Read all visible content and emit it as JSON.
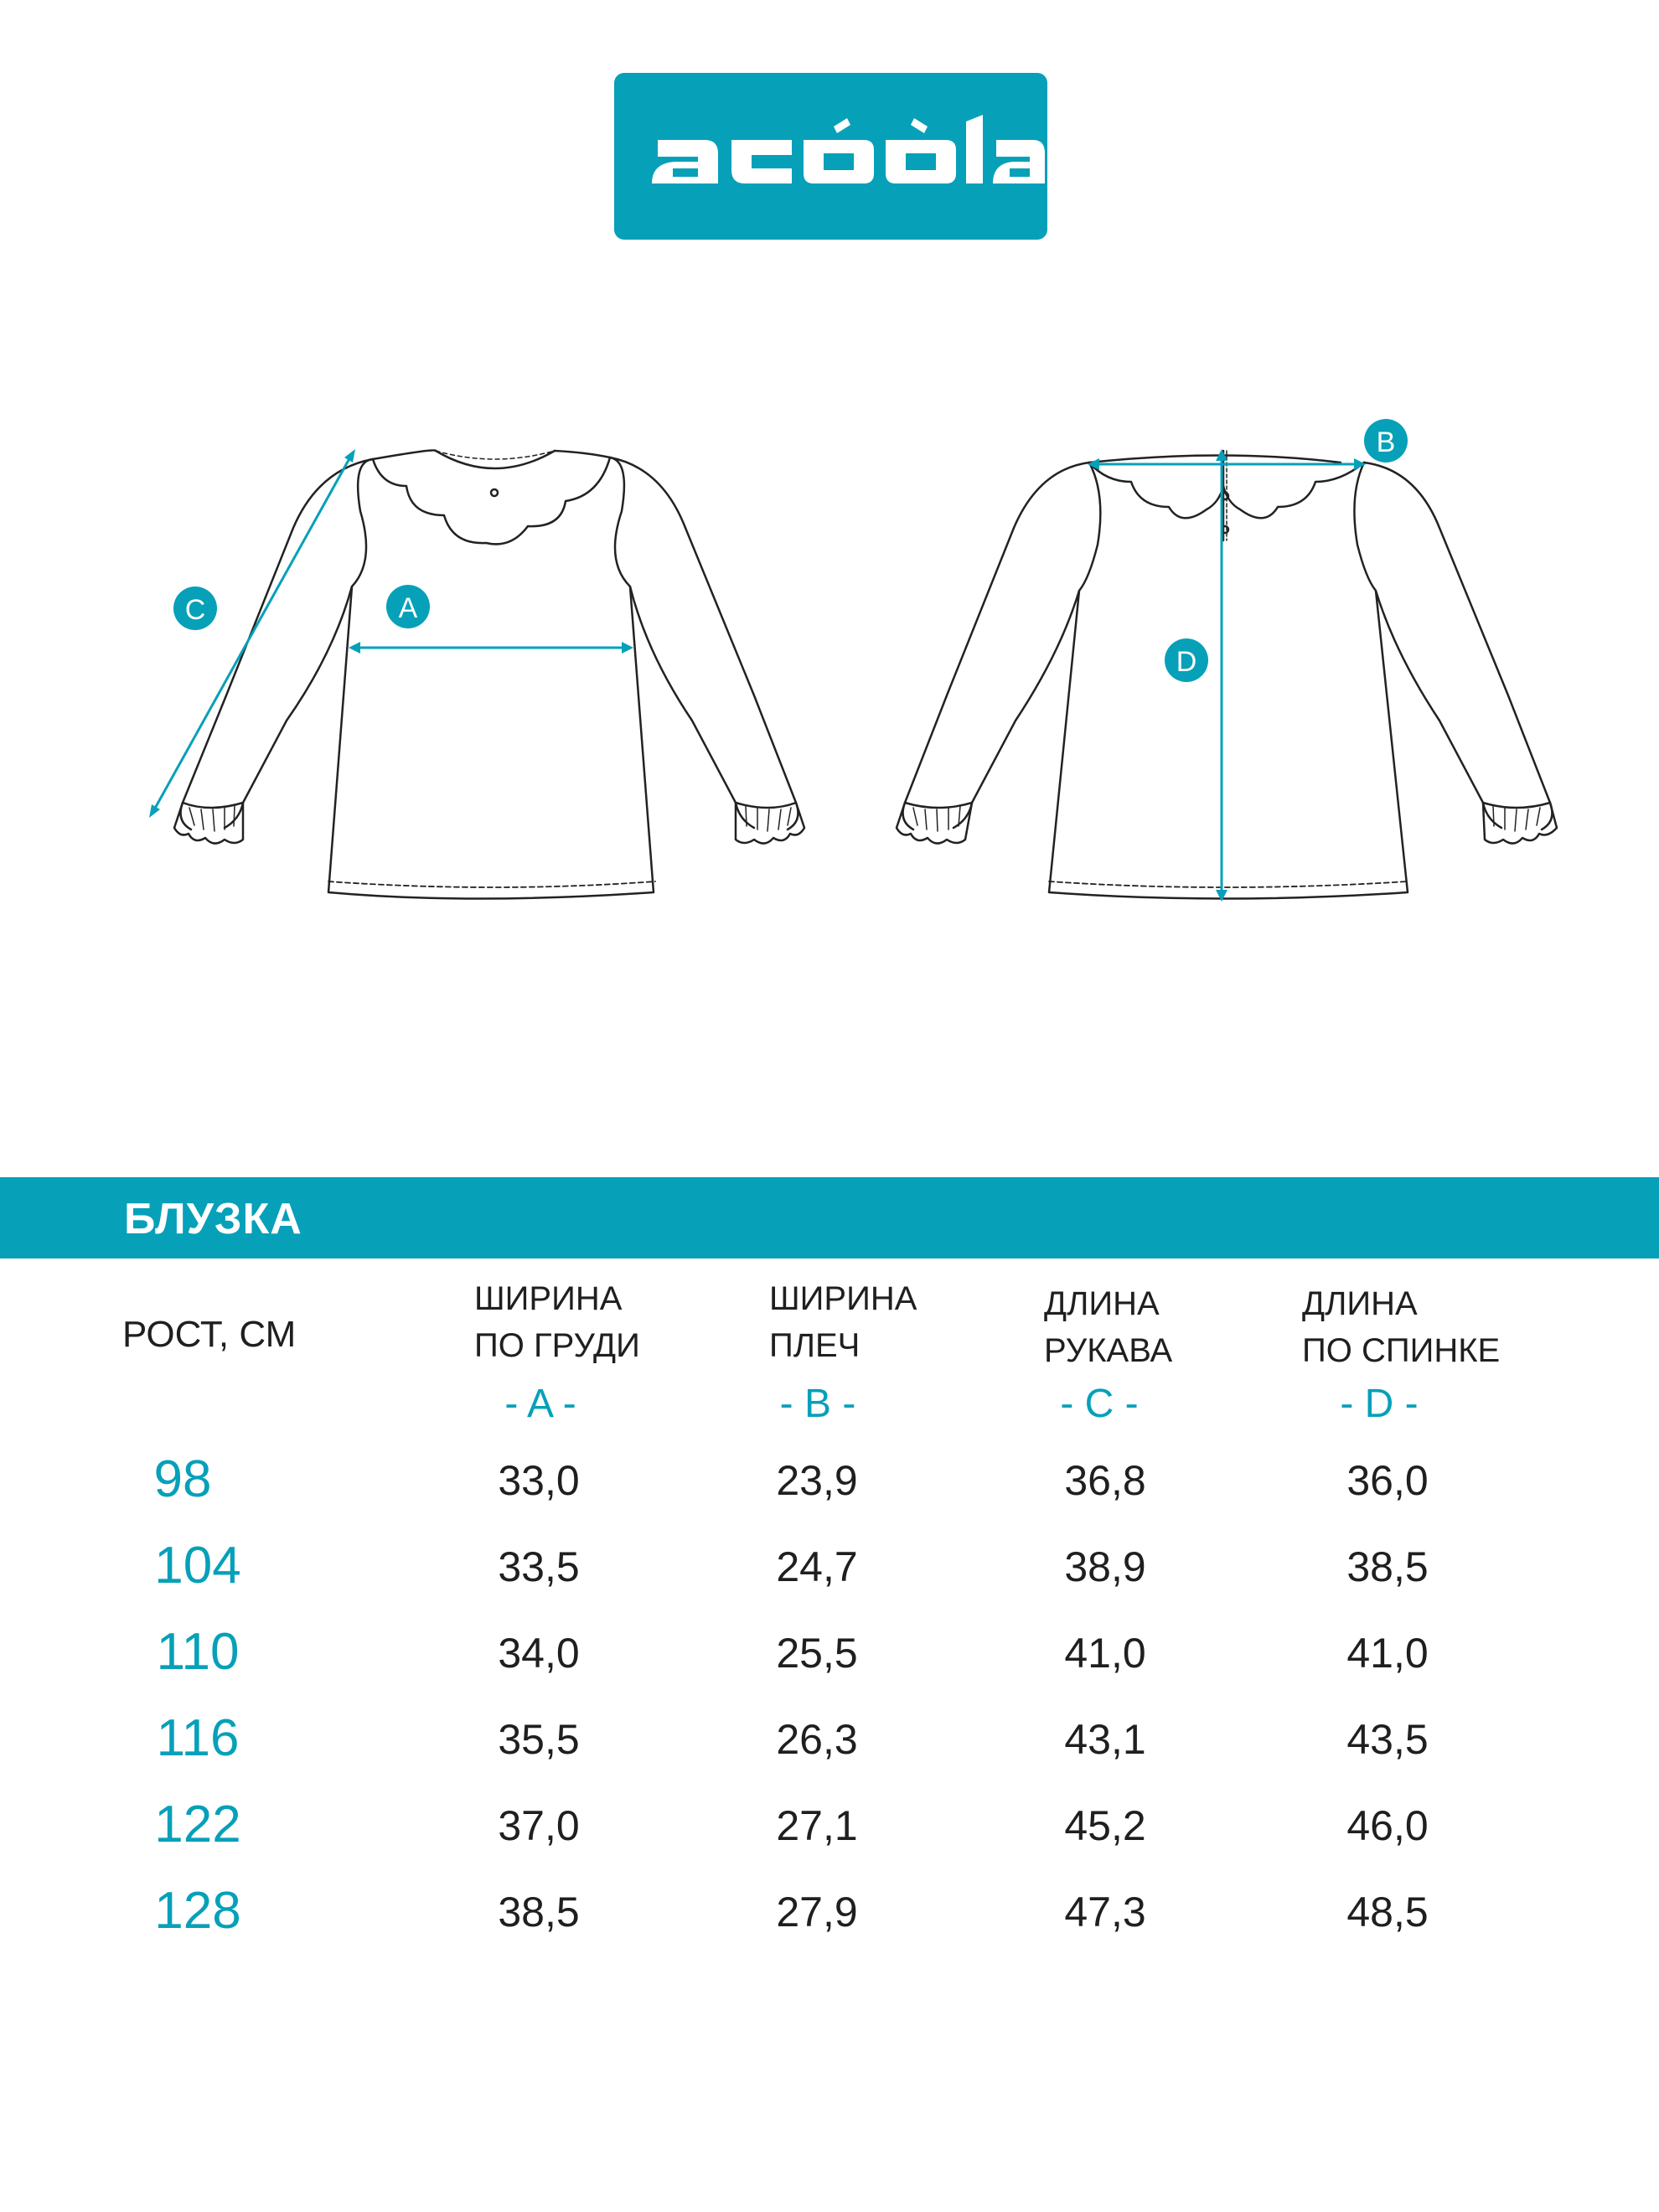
{
  "brand": {
    "logo_text": "acoola",
    "color": "#06a0b9"
  },
  "diagram": {
    "markers": [
      "A",
      "B",
      "C",
      "D"
    ]
  },
  "section": {
    "title": "БЛУЗКА"
  },
  "table": {
    "height_header": "РОСТ, СМ",
    "columns": [
      {
        "line1": "ШИРИНА",
        "line2": "ПО ГРУДИ",
        "code": "- A -"
      },
      {
        "line1": "ШИРИНА",
        "line2": "ПЛЕЧ",
        "code": "- B -"
      },
      {
        "line1": "ДЛИНА",
        "line2": "РУКАВА",
        "code": "- C -"
      },
      {
        "line1": "ДЛИНА",
        "line2": "ПО СПИНКЕ",
        "code": "- D -"
      }
    ],
    "rows": [
      {
        "height": "98",
        "values": [
          "33,0",
          "23,9",
          "36,8",
          "36,0"
        ]
      },
      {
        "height": "104",
        "values": [
          "33,5",
          "24,7",
          "38,9",
          "38,5"
        ]
      },
      {
        "height": "110",
        "values": [
          "34,0",
          "25,5",
          "41,0",
          "41,0"
        ]
      },
      {
        "height": "116",
        "values": [
          "35,5",
          "26,3",
          "43,1",
          "43,5"
        ]
      },
      {
        "height": "122",
        "values": [
          "37,0",
          "27,1",
          "45,2",
          "46,0"
        ]
      },
      {
        "height": "128",
        "values": [
          "38,5",
          "27,9",
          "47,3",
          "48,5"
        ]
      }
    ]
  }
}
